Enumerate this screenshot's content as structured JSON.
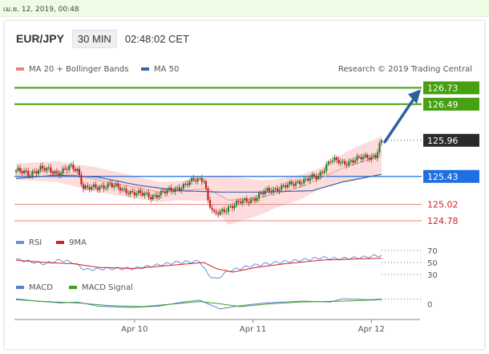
{
  "date_text": "เม.ย. 12, 2019, 00:48",
  "header": {
    "symbol": "EUR/JPY",
    "timeframe": "30 MIN",
    "time": "02:48:02 CET"
  },
  "credit": "Research © 2019 Trading Central",
  "colors": {
    "resistance": "#46a012",
    "support": "#f08080",
    "pivot": "#1f6fe0",
    "last": "#2b2b2b",
    "ma50": "#3a66a8",
    "bands": "#fbd3d3",
    "rsi": "#6b8fdc",
    "rsi9": "#d42020",
    "macd": "#5b7fcf",
    "macd_signal": "#3ca020",
    "up": "#2e7a2e",
    "down": "#c42222",
    "arrow": "#2d5fa0"
  },
  "chart_data": [
    {
      "type": "candlestick",
      "title": "EUR/JPY",
      "legend": [
        "MA 20 + Bollinger Bands",
        "MA 50"
      ],
      "legend_position": "top-left",
      "x_ticks": [
        "Apr 10",
        "Apr 11",
        "Apr 12"
      ],
      "ylim": [
        124.65,
        126.9
      ],
      "grid": false,
      "levels": [
        {
          "label": "126.73",
          "value": 126.73,
          "kind": "resistance"
        },
        {
          "label": "126.49",
          "value": 126.49,
          "kind": "resistance"
        },
        {
          "label": "125.96",
          "value": 125.96,
          "kind": "last"
        },
        {
          "label": "125.43",
          "value": 125.43,
          "kind": "pivot"
        },
        {
          "label": "125.02",
          "value": 125.02,
          "kind": "support"
        },
        {
          "label": "124.78",
          "value": 124.78,
          "kind": "support"
        }
      ],
      "price_anchors": [
        [
          0,
          125.52
        ],
        [
          6,
          125.46
        ],
        [
          12,
          125.55
        ],
        [
          20,
          125.48
        ],
        [
          26,
          125.56
        ],
        [
          30,
          125.52
        ],
        [
          33,
          125.28
        ],
        [
          40,
          125.25
        ],
        [
          46,
          125.33
        ],
        [
          52,
          125.22
        ],
        [
          58,
          125.2
        ],
        [
          66,
          125.13
        ],
        [
          70,
          125.18
        ],
        [
          76,
          125.22
        ],
        [
          82,
          125.3
        ],
        [
          88,
          125.38
        ],
        [
          92,
          125.4
        ],
        [
          94,
          125.08
        ],
        [
          97,
          124.86
        ],
        [
          100,
          124.9
        ],
        [
          104,
          124.98
        ],
        [
          110,
          125.05
        ],
        [
          116,
          125.1
        ],
        [
          122,
          125.2
        ],
        [
          128,
          125.26
        ],
        [
          134,
          125.3
        ],
        [
          140,
          125.37
        ],
        [
          144,
          125.4
        ],
        [
          148,
          125.42
        ],
        [
          150,
          125.52
        ],
        [
          154,
          125.68
        ],
        [
          160,
          125.62
        ],
        [
          166,
          125.68
        ],
        [
          172,
          125.71
        ],
        [
          176,
          125.74
        ],
        [
          179,
          125.96
        ]
      ],
      "ma20": [
        [
          0,
          125.5
        ],
        [
          20,
          125.5
        ],
        [
          40,
          125.38
        ],
        [
          70,
          125.2
        ],
        [
          94,
          125.25
        ],
        [
          104,
          125.08
        ],
        [
          120,
          125.12
        ],
        [
          140,
          125.28
        ],
        [
          160,
          125.55
        ],
        [
          179,
          125.74
        ]
      ],
      "ma50": [
        [
          0,
          125.4
        ],
        [
          20,
          125.45
        ],
        [
          40,
          125.42
        ],
        [
          60,
          125.3
        ],
        [
          80,
          125.22
        ],
        [
          100,
          125.2
        ],
        [
          120,
          125.2
        ],
        [
          145,
          125.22
        ],
        [
          160,
          125.35
        ],
        [
          179,
          125.46
        ]
      ],
      "band_width": [
        [
          0,
          0.12
        ],
        [
          40,
          0.18
        ],
        [
          80,
          0.14
        ],
        [
          94,
          0.18
        ],
        [
          104,
          0.36
        ],
        [
          125,
          0.22
        ],
        [
          150,
          0.15
        ],
        [
          165,
          0.24
        ],
        [
          179,
          0.28
        ]
      ]
    },
    {
      "type": "line",
      "legend": [
        "RSI",
        "9MA"
      ],
      "ticks": [
        "70",
        "50",
        "30"
      ],
      "ylim": [
        30,
        70
      ],
      "rsi": [
        [
          0,
          55
        ],
        [
          6,
          52
        ],
        [
          14,
          48
        ],
        [
          22,
          54
        ],
        [
          28,
          50
        ],
        [
          34,
          38
        ],
        [
          46,
          40
        ],
        [
          58,
          40
        ],
        [
          68,
          45
        ],
        [
          78,
          50
        ],
        [
          90,
          52
        ],
        [
          94,
          30
        ],
        [
          98,
          22
        ],
        [
          104,
          36
        ],
        [
          116,
          45
        ],
        [
          128,
          50
        ],
        [
          140,
          54
        ],
        [
          150,
          58
        ],
        [
          158,
          56
        ],
        [
          168,
          58
        ],
        [
          179,
          62
        ]
      ],
      "rsi9": [
        [
          0,
          54
        ],
        [
          14,
          50
        ],
        [
          28,
          48
        ],
        [
          40,
          42
        ],
        [
          58,
          40
        ],
        [
          78,
          46
        ],
        [
          92,
          50
        ],
        [
          98,
          40
        ],
        [
          106,
          34
        ],
        [
          118,
          42
        ],
        [
          132,
          48
        ],
        [
          150,
          54
        ],
        [
          168,
          56
        ],
        [
          179,
          57
        ]
      ]
    },
    {
      "type": "line",
      "legend": [
        "MACD",
        "MACD Signal"
      ],
      "ticks": [
        "0"
      ],
      "ylim": [
        -1,
        1
      ],
      "macd": [
        [
          0,
          0.55
        ],
        [
          10,
          0.3
        ],
        [
          22,
          0.1
        ],
        [
          30,
          0.2
        ],
        [
          40,
          -0.25
        ],
        [
          56,
          -0.4
        ],
        [
          70,
          -0.25
        ],
        [
          82,
          0.2
        ],
        [
          90,
          0.4
        ],
        [
          96,
          -0.2
        ],
        [
          100,
          -0.55
        ],
        [
          108,
          -0.25
        ],
        [
          122,
          0.1
        ],
        [
          140,
          0.3
        ],
        [
          154,
          0.2
        ],
        [
          160,
          0.55
        ],
        [
          172,
          0.45
        ],
        [
          179,
          0.5
        ]
      ],
      "signal": [
        [
          0,
          0.45
        ],
        [
          14,
          0.25
        ],
        [
          30,
          0.1
        ],
        [
          46,
          -0.2
        ],
        [
          62,
          -0.3
        ],
        [
          78,
          0.0
        ],
        [
          90,
          0.25
        ],
        [
          100,
          0.0
        ],
        [
          110,
          -0.3
        ],
        [
          124,
          0.0
        ],
        [
          140,
          0.2
        ],
        [
          160,
          0.3
        ],
        [
          179,
          0.45
        ]
      ]
    }
  ]
}
